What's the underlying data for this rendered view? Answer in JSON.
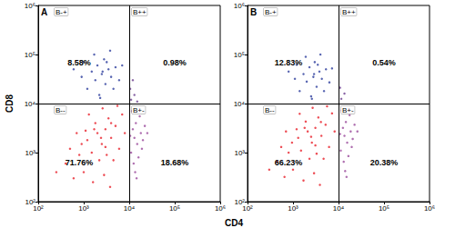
{
  "x_label": "CD4",
  "y_label": "CD8",
  "chart_data": [
    {
      "type": "scatter",
      "title": "A",
      "log": true,
      "grid": false,
      "xlim": [
        100,
        1000000
      ],
      "ylim": [
        100,
        1000000
      ],
      "xticks": [
        {
          "value": 100,
          "label": "10²"
        },
        {
          "value": 1000,
          "label": "10³"
        },
        {
          "value": 10000,
          "label": "10⁴"
        },
        {
          "value": 100000,
          "label": "10⁵"
        },
        {
          "value": 1000000,
          "label": "10⁶"
        }
      ],
      "yticks": [
        {
          "value": 100,
          "label": "10²"
        },
        {
          "value": 1000,
          "label": "10³"
        },
        {
          "value": 10000,
          "label": "10⁴"
        },
        {
          "value": 100000,
          "label": "10⁵"
        },
        {
          "value": 1000000,
          "label": "10⁶"
        }
      ],
      "gate": {
        "x": 10000,
        "y": 10000
      },
      "annotations": [
        {
          "quadrant": "B-+",
          "text": "8.58%"
        },
        {
          "quadrant": "B++",
          "text": "0.98%"
        },
        {
          "quadrant": "B--",
          "text": "71.76%"
        },
        {
          "quadrant": "B+-",
          "text": "18.68%"
        }
      ],
      "series": [
        {
          "color": "#e8202a",
          "values": [
            [
              1200,
              1800
            ],
            [
              2000,
              2500
            ],
            [
              3000,
              3000
            ],
            [
              1500,
              1000
            ],
            [
              2500,
              1500
            ],
            [
              4000,
              2000
            ],
            [
              800,
              900
            ],
            [
              1800,
              4000
            ],
            [
              3500,
              5000
            ],
            [
              5000,
              3500
            ],
            [
              6000,
              1200
            ],
            [
              1000,
              400
            ],
            [
              2200,
              700
            ],
            [
              3200,
              900
            ],
            [
              700,
              2500
            ],
            [
              1300,
              6000
            ],
            [
              2600,
              8000
            ],
            [
              7000,
              6000
            ],
            [
              400,
              600
            ],
            [
              600,
              300
            ],
            [
              1600,
              250
            ],
            [
              2800,
              350
            ],
            [
              4500,
              700
            ],
            [
              8000,
              2500
            ],
            [
              900,
              1500
            ],
            [
              2400,
              2000
            ],
            [
              1700,
              3000
            ],
            [
              3000,
              1300
            ],
            [
              500,
              1200
            ],
            [
              1100,
              2800
            ],
            [
              4000,
              4000
            ],
            [
              250,
              400
            ],
            [
              5500,
              9000
            ],
            [
              3800,
              200
            ]
          ]
        },
        {
          "color": "#2e3f9e",
          "values": [
            [
              2500,
              40000
            ],
            [
              1800,
              30000
            ],
            [
              3500,
              50000
            ],
            [
              2000,
              60000
            ],
            [
              3000,
              25000
            ],
            [
              1500,
              45000
            ],
            [
              4000,
              35000
            ],
            [
              2800,
              80000
            ],
            [
              1200,
              20000
            ],
            [
              5000,
              55000
            ],
            [
              2200,
              15000
            ],
            [
              3200,
              70000
            ],
            [
              6000,
              30000
            ],
            [
              900,
              35000
            ],
            [
              1700,
              100000
            ],
            [
              4500,
              20000
            ],
            [
              2600,
              45000
            ],
            [
              7000,
              60000
            ],
            [
              1000,
              70000
            ],
            [
              3800,
              120000
            ],
            [
              2300,
              13000
            ],
            [
              600,
              50000
            ]
          ]
        },
        {
          "color": "#9a4a9b",
          "values": [
            [
              13000,
              2000
            ],
            [
              15000,
              1500
            ],
            [
              12000,
              3000
            ],
            [
              18000,
              2500
            ],
            [
              11000,
              1000
            ],
            [
              14000,
              4000
            ],
            [
              16000,
              800
            ],
            [
              20000,
              1800
            ],
            [
              12500,
              600
            ],
            [
              17000,
              5500
            ],
            [
              11500,
              7000
            ],
            [
              22000,
              3500
            ],
            [
              13500,
              400
            ],
            [
              15500,
              8000
            ],
            [
              19000,
              1200
            ],
            [
              10500,
              2200
            ],
            [
              25000,
              2500
            ],
            [
              14500,
              300
            ]
          ]
        },
        {
          "color": "#6b3f8f",
          "values": [
            [
              11000,
              12000
            ],
            [
              13000,
              15000
            ],
            [
              10500,
              20000
            ],
            [
              15000,
              11000
            ],
            [
              12000,
              30000
            ]
          ]
        }
      ]
    },
    {
      "type": "scatter",
      "title": "B",
      "log": true,
      "grid": false,
      "xlim": [
        100,
        1000000
      ],
      "ylim": [
        100,
        1000000
      ],
      "xticks": [
        {
          "value": 100,
          "label": "10²"
        },
        {
          "value": 1000,
          "label": "10³"
        },
        {
          "value": 10000,
          "label": "10⁴"
        },
        {
          "value": 100000,
          "label": "10⁵"
        },
        {
          "value": 1000000,
          "label": "10⁶"
        }
      ],
      "yticks": [
        {
          "value": 100,
          "label": "10²"
        },
        {
          "value": 1000,
          "label": "10³"
        },
        {
          "value": 10000,
          "label": "10⁴"
        },
        {
          "value": 100000,
          "label": "10⁵"
        },
        {
          "value": 1000000,
          "label": "10⁶"
        }
      ],
      "gate": {
        "x": 10000,
        "y": 10000
      },
      "annotations": [
        {
          "quadrant": "B-+",
          "text": "12.83%"
        },
        {
          "quadrant": "B++",
          "text": "0.54%"
        },
        {
          "quadrant": "B--",
          "text": "66.23%"
        },
        {
          "quadrant": "B+-",
          "text": "20.38%"
        }
      ],
      "series": [
        {
          "color": "#e8202a",
          "values": [
            [
              1300,
              2000
            ],
            [
              2100,
              2700
            ],
            [
              3100,
              3200
            ],
            [
              1500,
              1100
            ],
            [
              2600,
              1600
            ],
            [
              4200,
              2200
            ],
            [
              800,
              1000
            ],
            [
              1900,
              4300
            ],
            [
              3600,
              5200
            ],
            [
              5200,
              3700
            ],
            [
              6200,
              1300
            ],
            [
              1000,
              450
            ],
            [
              2300,
              750
            ],
            [
              3300,
              950
            ],
            [
              700,
              2700
            ],
            [
              1400,
              6200
            ],
            [
              2700,
              8200
            ],
            [
              7200,
              6300
            ],
            [
              450,
              650
            ],
            [
              650,
              320
            ],
            [
              1700,
              270
            ],
            [
              2900,
              380
            ],
            [
              4700,
              750
            ],
            [
              8200,
              2700
            ],
            [
              950,
              1600
            ],
            [
              2500,
              2100
            ],
            [
              1800,
              3200
            ],
            [
              3100,
              1400
            ],
            [
              550,
              1300
            ],
            [
              1200,
              3000
            ],
            [
              4100,
              4200
            ],
            [
              300,
              450
            ],
            [
              5600,
              8800
            ],
            [
              3900,
              220
            ]
          ]
        },
        {
          "color": "#2e3f9e",
          "values": [
            [
              2800,
              35000
            ],
            [
              2000,
              28000
            ],
            [
              3800,
              45000
            ],
            [
              2300,
              55000
            ],
            [
              3300,
              22000
            ],
            [
              1700,
              40000
            ],
            [
              4300,
              32000
            ],
            [
              3000,
              70000
            ],
            [
              1400,
              18000
            ],
            [
              5300,
              50000
            ],
            [
              2500,
              14000
            ],
            [
              3500,
              62000
            ],
            [
              6300,
              27000
            ],
            [
              1100,
              32000
            ],
            [
              1900,
              90000
            ],
            [
              4800,
              18000
            ],
            [
              2900,
              40000
            ],
            [
              7200,
              52000
            ],
            [
              1200,
              62000
            ],
            [
              4000,
              100000
            ],
            [
              2600,
              12500
            ],
            [
              800,
              45000
            ]
          ]
        },
        {
          "color": "#9a4a9b",
          "values": [
            [
              13500,
              2200
            ],
            [
              15500,
              1600
            ],
            [
              12500,
              3200
            ],
            [
              18500,
              2700
            ],
            [
              11200,
              1100
            ],
            [
              14500,
              4200
            ],
            [
              16500,
              850
            ],
            [
              20500,
              1900
            ],
            [
              13000,
              650
            ],
            [
              17500,
              5800
            ],
            [
              11800,
              7200
            ],
            [
              22500,
              3700
            ],
            [
              14000,
              420
            ],
            [
              16000,
              8300
            ],
            [
              19500,
              1300
            ],
            [
              10800,
              2400
            ],
            [
              26000,
              2700
            ],
            [
              15000,
              320
            ]
          ]
        },
        {
          "color": "#6b3f8f",
          "values": [
            [
              11500,
              12500
            ],
            [
              13500,
              16000
            ],
            [
              10800,
              21000
            ]
          ]
        }
      ]
    }
  ]
}
